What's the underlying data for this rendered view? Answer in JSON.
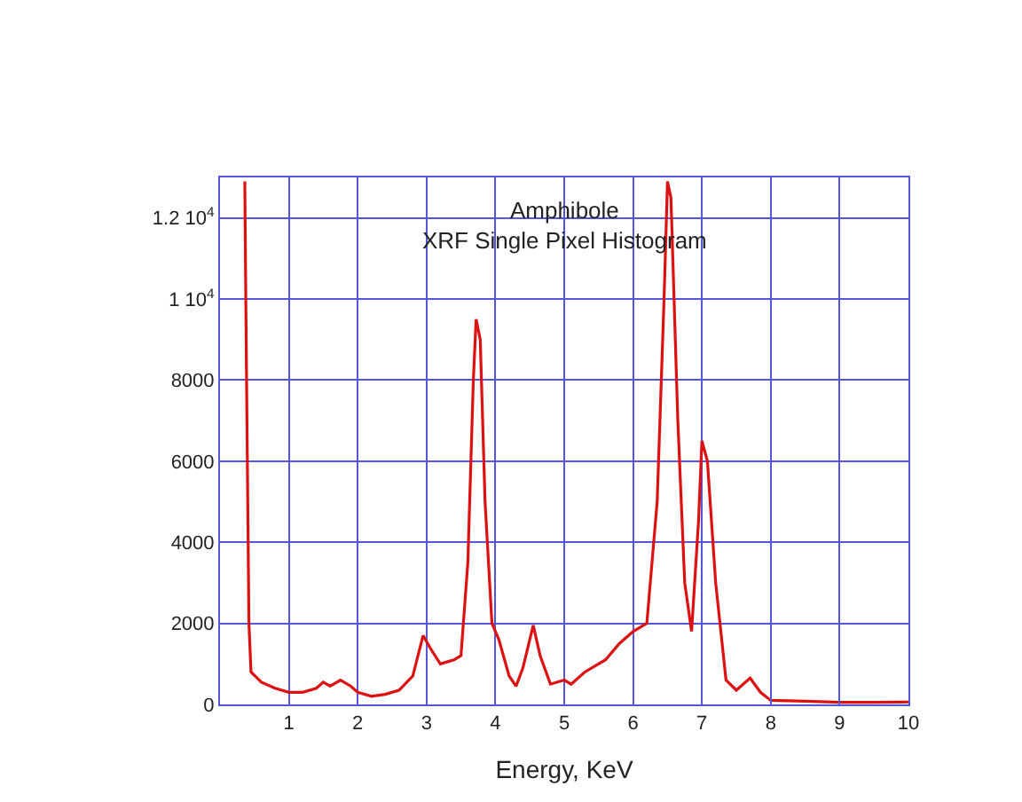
{
  "chart_data": {
    "type": "line",
    "title": "Amphibole\nXRF Single Pixel Histogram",
    "xlabel": "Energy, KeV",
    "xlim": [
      0,
      10
    ],
    "xticks": [
      1,
      2,
      3,
      4,
      5,
      6,
      7,
      8,
      9,
      10
    ],
    "ylim": [
      0,
      13000
    ],
    "yticks": [
      0,
      2000,
      4000,
      6000,
      8000,
      {
        "value": 10000,
        "label": "1 10$^{4}$"
      },
      {
        "value": 12000,
        "label": "1.2 10$^{4}$"
      }
    ],
    "grid": true,
    "series": [
      {
        "color": "#dd1111",
        "x": [
          0.36,
          0.38,
          0.42,
          0.45,
          0.6,
          0.8,
          1.0,
          1.2,
          1.4,
          1.5,
          1.6,
          1.75,
          1.9,
          2.0,
          2.2,
          2.4,
          2.6,
          2.8,
          2.95,
          3.05,
          3.2,
          3.4,
          3.5,
          3.6,
          3.68,
          3.72,
          3.78,
          3.85,
          3.95,
          4.05,
          4.2,
          4.3,
          4.4,
          4.55,
          4.65,
          4.8,
          5.0,
          5.1,
          5.3,
          5.6,
          5.8,
          6.0,
          6.2,
          6.35,
          6.45,
          6.5,
          6.55,
          6.65,
          6.75,
          6.85,
          6.95,
          7.0,
          7.08,
          7.2,
          7.35,
          7.5,
          7.7,
          7.85,
          8.0,
          8.5,
          9.0,
          9.5,
          10.0
        ],
        "values": [
          12900,
          9000,
          2000,
          800,
          550,
          400,
          300,
          300,
          400,
          550,
          450,
          600,
          450,
          300,
          200,
          250,
          350,
          700,
          1700,
          1400,
          1000,
          1100,
          1200,
          3500,
          8000,
          9500,
          9000,
          5000,
          2000,
          1600,
          700,
          450,
          900,
          1950,
          1200,
          500,
          600,
          500,
          800,
          1100,
          1500,
          1800,
          2000,
          5000,
          10000,
          12900,
          12500,
          7000,
          3000,
          1800,
          4500,
          6500,
          6000,
          3000,
          600,
          350,
          650,
          300,
          100,
          80,
          50,
          50,
          60
        ]
      }
    ]
  }
}
